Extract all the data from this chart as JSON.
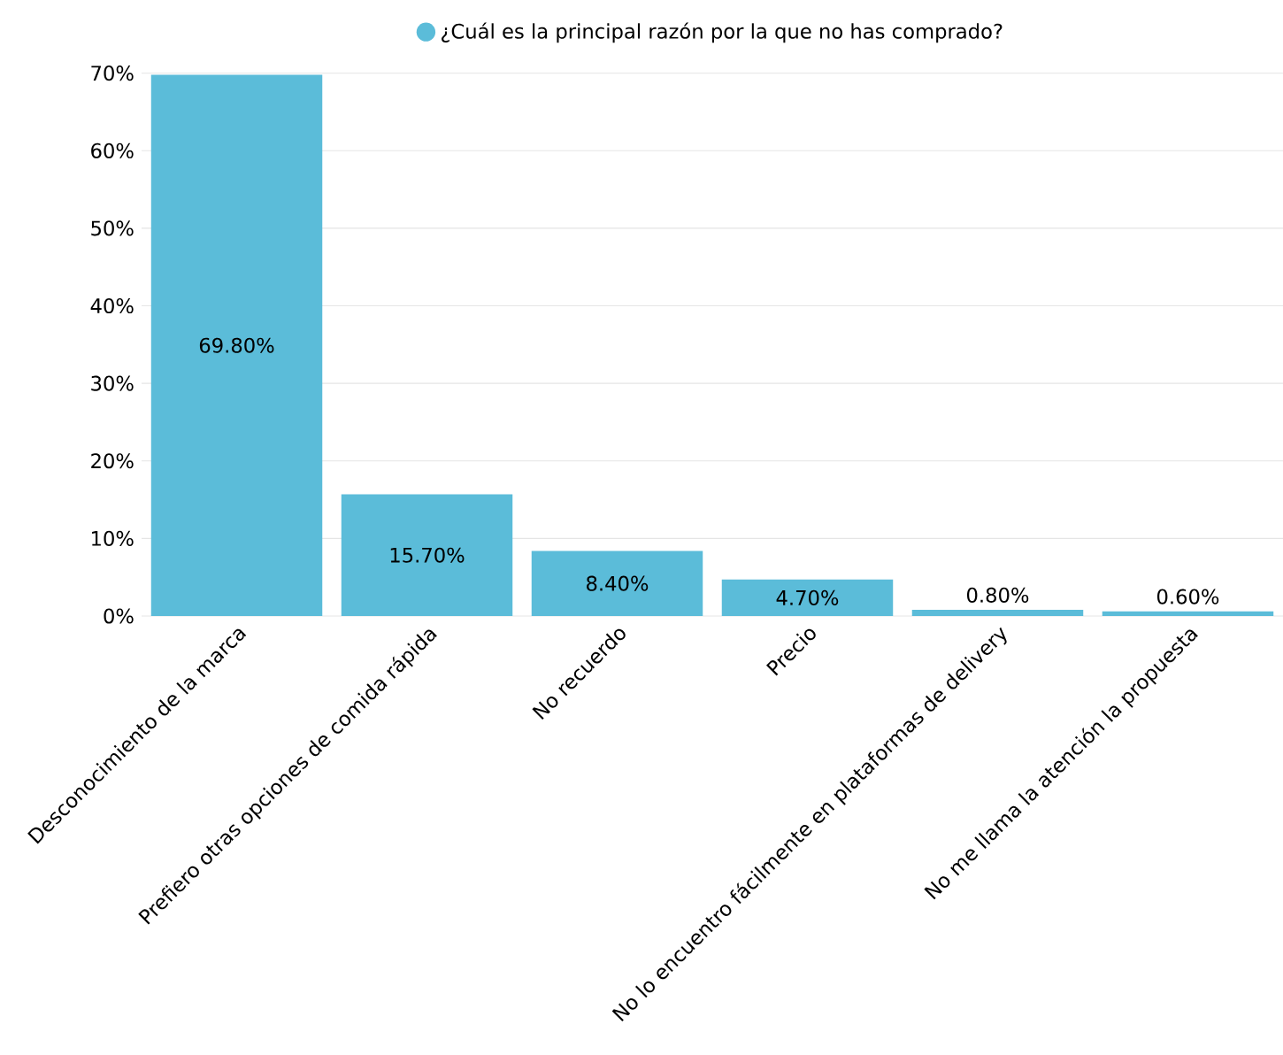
{
  "chart_data": {
    "type": "bar",
    "categories": [
      "Desconocimiento de la marca",
      "Prefiero otras opciones de comida rápida",
      "No recuerdo",
      "Precio",
      "No lo encuentro fácilmente en plataformas de delivery",
      "No me llama la atención la propuesta"
    ],
    "series": [
      {
        "name": "¿Cuál es la principal razón por la que no has comprado?",
        "color": "#5bbcd9",
        "values": [
          69.8,
          15.7,
          8.4,
          4.7,
          0.8,
          0.6
        ],
        "value_labels": [
          "69.80%",
          "15.70%",
          "8.40%",
          "4.70%",
          "0.80%",
          "0.60%"
        ]
      }
    ],
    "ylim": [
      0,
      70
    ],
    "yticks": [
      {
        "value": 0,
        "label": "0%"
      },
      {
        "value": 10,
        "label": "10%"
      },
      {
        "value": 20,
        "label": "20%"
      },
      {
        "value": 30,
        "label": "30%"
      },
      {
        "value": 40,
        "label": "40%"
      },
      {
        "value": 50,
        "label": "50%"
      },
      {
        "value": 60,
        "label": "60%"
      },
      {
        "value": 70,
        "label": "70%"
      }
    ],
    "grid": "y",
    "legend": "top"
  }
}
